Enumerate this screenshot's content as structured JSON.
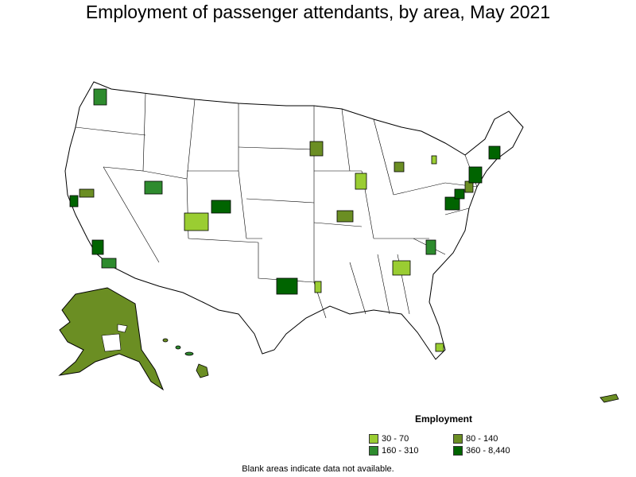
{
  "title": "Employment of passenger attendants, by area, May 2021",
  "legend": {
    "title": "Employment",
    "bins": [
      {
        "label": "30 - 70",
        "color": "#9acd32"
      },
      {
        "label": "80 - 140",
        "color": "#6b8e23"
      },
      {
        "label": "160 - 310",
        "color": "#2e8b2e"
      },
      {
        "label": "360 - 8,440",
        "color": "#006400"
      }
    ]
  },
  "note": "Blank areas indicate data not available.",
  "colors": {
    "border": "#000000",
    "blank": "#ffffff"
  }
}
